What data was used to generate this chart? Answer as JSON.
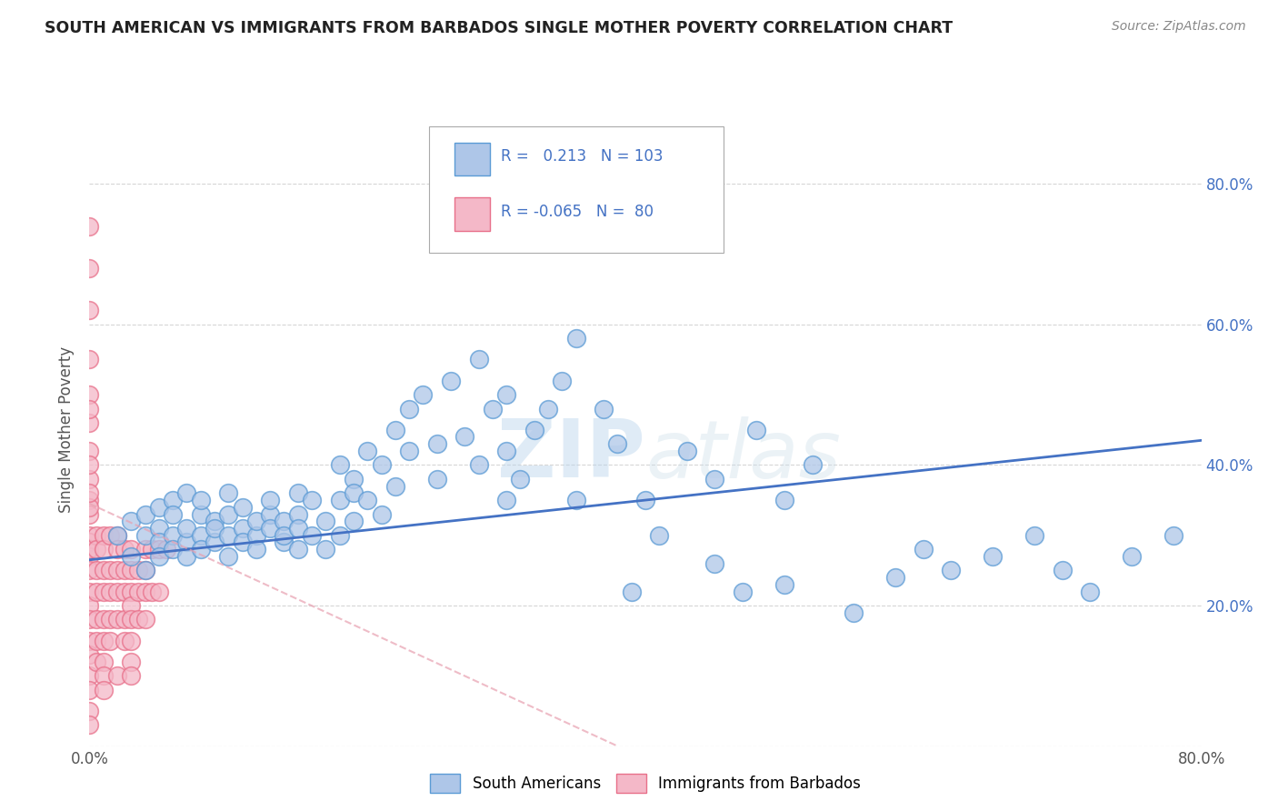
{
  "title": "SOUTH AMERICAN VS IMMIGRANTS FROM BARBADOS SINGLE MOTHER POVERTY CORRELATION CHART",
  "source": "Source: ZipAtlas.com",
  "ylabel": "Single Mother Poverty",
  "legend_label1": "South Americans",
  "legend_label2": "Immigrants from Barbados",
  "r1": 0.213,
  "n1": 103,
  "r2": -0.065,
  "n2": 80,
  "color1": "#aec6e8",
  "color2": "#f4b8c8",
  "edge_color1": "#5b9bd5",
  "edge_color2": "#e8708a",
  "line_color1": "#4472c4",
  "line_color2": "#e8a0b0",
  "watermark_color": "#ccdff0",
  "xlim": [
    0.0,
    0.8
  ],
  "ylim": [
    0.0,
    0.9
  ],
  "background_color": "#ffffff",
  "grid_color": "#cccccc",
  "sa_line_x0": 0.0,
  "sa_line_y0": 0.265,
  "sa_line_x1": 0.8,
  "sa_line_y1": 0.435,
  "bb_line_x0": 0.0,
  "bb_line_y0": 0.345,
  "bb_line_x1": 0.38,
  "bb_line_y1": 0.0,
  "south_american_x": [
    0.02,
    0.03,
    0.03,
    0.04,
    0.04,
    0.04,
    0.05,
    0.05,
    0.05,
    0.05,
    0.06,
    0.06,
    0.06,
    0.06,
    0.07,
    0.07,
    0.07,
    0.07,
    0.08,
    0.08,
    0.08,
    0.08,
    0.09,
    0.09,
    0.09,
    0.1,
    0.1,
    0.1,
    0.1,
    0.11,
    0.11,
    0.11,
    0.12,
    0.12,
    0.12,
    0.13,
    0.13,
    0.13,
    0.14,
    0.14,
    0.14,
    0.15,
    0.15,
    0.15,
    0.15,
    0.16,
    0.16,
    0.17,
    0.17,
    0.18,
    0.18,
    0.18,
    0.19,
    0.19,
    0.19,
    0.2,
    0.2,
    0.21,
    0.21,
    0.22,
    0.22,
    0.23,
    0.23,
    0.24,
    0.25,
    0.25,
    0.26,
    0.27,
    0.28,
    0.28,
    0.29,
    0.3,
    0.3,
    0.3,
    0.31,
    0.32,
    0.33,
    0.34,
    0.35,
    0.35,
    0.37,
    0.38,
    0.39,
    0.4,
    0.41,
    0.43,
    0.45,
    0.47,
    0.48,
    0.5,
    0.52,
    0.55,
    0.58,
    0.45,
    0.5,
    0.6,
    0.62,
    0.65,
    0.68,
    0.7,
    0.72,
    0.75,
    0.78
  ],
  "south_american_y": [
    0.3,
    0.32,
    0.27,
    0.3,
    0.33,
    0.25,
    0.31,
    0.29,
    0.34,
    0.27,
    0.3,
    0.28,
    0.35,
    0.33,
    0.29,
    0.31,
    0.36,
    0.27,
    0.3,
    0.33,
    0.28,
    0.35,
    0.32,
    0.29,
    0.31,
    0.3,
    0.33,
    0.27,
    0.36,
    0.31,
    0.29,
    0.34,
    0.3,
    0.32,
    0.28,
    0.33,
    0.31,
    0.35,
    0.29,
    0.32,
    0.3,
    0.33,
    0.28,
    0.36,
    0.31,
    0.35,
    0.3,
    0.32,
    0.28,
    0.4,
    0.35,
    0.3,
    0.38,
    0.32,
    0.36,
    0.42,
    0.35,
    0.4,
    0.33,
    0.45,
    0.37,
    0.48,
    0.42,
    0.5,
    0.38,
    0.43,
    0.52,
    0.44,
    0.4,
    0.55,
    0.48,
    0.42,
    0.5,
    0.35,
    0.38,
    0.45,
    0.48,
    0.52,
    0.58,
    0.35,
    0.48,
    0.43,
    0.22,
    0.35,
    0.3,
    0.42,
    0.38,
    0.22,
    0.45,
    0.35,
    0.4,
    0.19,
    0.24,
    0.26,
    0.23,
    0.28,
    0.25,
    0.27,
    0.3,
    0.25,
    0.22,
    0.27,
    0.3
  ],
  "barbados_x": [
    0.0,
    0.0,
    0.0,
    0.0,
    0.0,
    0.0,
    0.0,
    0.0,
    0.0,
    0.0,
    0.0,
    0.0,
    0.0,
    0.0,
    0.0,
    0.0,
    0.0,
    0.0,
    0.0,
    0.0,
    0.0,
    0.0,
    0.0,
    0.0,
    0.0,
    0.0,
    0.0,
    0.0,
    0.005,
    0.005,
    0.005,
    0.005,
    0.005,
    0.005,
    0.005,
    0.01,
    0.01,
    0.01,
    0.01,
    0.01,
    0.01,
    0.01,
    0.01,
    0.01,
    0.015,
    0.015,
    0.015,
    0.015,
    0.015,
    0.02,
    0.02,
    0.02,
    0.02,
    0.02,
    0.02,
    0.025,
    0.025,
    0.025,
    0.025,
    0.025,
    0.03,
    0.03,
    0.03,
    0.03,
    0.03,
    0.03,
    0.03,
    0.03,
    0.035,
    0.035,
    0.035,
    0.04,
    0.04,
    0.04,
    0.04,
    0.045,
    0.045,
    0.05,
    0.05,
    0.055
  ],
  "barbados_y": [
    0.74,
    0.68,
    0.62,
    0.5,
    0.46,
    0.42,
    0.38,
    0.35,
    0.33,
    0.3,
    0.29,
    0.27,
    0.25,
    0.22,
    0.2,
    0.18,
    0.15,
    0.13,
    0.1,
    0.08,
    0.05,
    0.03,
    0.4,
    0.48,
    0.55,
    0.34,
    0.28,
    0.36,
    0.3,
    0.28,
    0.25,
    0.22,
    0.18,
    0.15,
    0.12,
    0.3,
    0.28,
    0.25,
    0.22,
    0.18,
    0.15,
    0.12,
    0.1,
    0.08,
    0.3,
    0.25,
    0.22,
    0.18,
    0.15,
    0.3,
    0.28,
    0.25,
    0.22,
    0.18,
    0.1,
    0.28,
    0.25,
    0.22,
    0.18,
    0.15,
    0.28,
    0.25,
    0.22,
    0.2,
    0.18,
    0.15,
    0.12,
    0.1,
    0.25,
    0.22,
    0.18,
    0.28,
    0.25,
    0.22,
    0.18,
    0.28,
    0.22,
    0.28,
    0.22,
    0.28
  ]
}
